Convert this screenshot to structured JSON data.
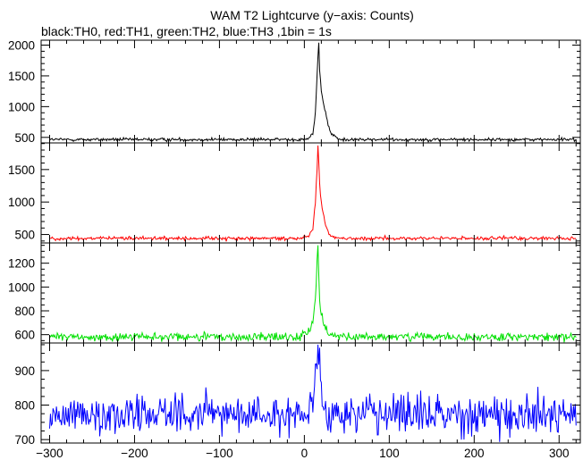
{
  "title": "WAM T2 Lightcurve (y−axis: Counts)",
  "subtitle": "black:TH0, red:TH1, green:TH2, blue:TH3 ,1bin = 1s",
  "chart_data": {
    "type": "line",
    "title": "WAM T2 Lightcurve (y−axis: Counts)",
    "subtitle": "black:TH0, red:TH1, green:TH2, blue:TH3 ,1bin = 1s",
    "xlabel": "",
    "ylabel": "",
    "bin_seconds": 1,
    "xlim": [
      -310,
      325
    ],
    "x_ticks": [
      -300,
      -200,
      -100,
      0,
      100,
      200,
      300
    ],
    "x_tick_labels": [
      "−300",
      "−200",
      "−100",
      "0",
      "100",
      "200",
      "300"
    ],
    "grid": false,
    "panels": [
      {
        "name": "TH0",
        "color": "#000000",
        "ylim": [
          410,
          2080
        ],
        "y_ticks": [
          500,
          1000,
          1500,
          2000
        ],
        "baseline": 465,
        "noise_sd": 13,
        "burst": [
          {
            "x": -5,
            "y": 470
          },
          {
            "x": 5,
            "y": 490
          },
          {
            "x": 10,
            "y": 560
          },
          {
            "x": 13,
            "y": 900
          },
          {
            "x": 15,
            "y": 1480
          },
          {
            "x": 16,
            "y": 1750
          },
          {
            "x": 17,
            "y": 2040
          },
          {
            "x": 18,
            "y": 1600
          },
          {
            "x": 19,
            "y": 1400
          },
          {
            "x": 20,
            "y": 1250
          },
          {
            "x": 22,
            "y": 1100
          },
          {
            "x": 25,
            "y": 900
          },
          {
            "x": 28,
            "y": 700
          },
          {
            "x": 32,
            "y": 550
          },
          {
            "x": 40,
            "y": 480
          }
        ]
      },
      {
        "name": "TH1",
        "color": "#ff0000",
        "ylim": [
          370,
          1910
        ],
        "y_ticks": [
          500,
          1000,
          1500
        ],
        "baseline": 440,
        "noise_sd": 14,
        "burst": [
          {
            "x": -5,
            "y": 450
          },
          {
            "x": 5,
            "y": 480
          },
          {
            "x": 10,
            "y": 580
          },
          {
            "x": 13,
            "y": 1000
          },
          {
            "x": 15,
            "y": 1500
          },
          {
            "x": 16,
            "y": 1870
          },
          {
            "x": 17,
            "y": 1600
          },
          {
            "x": 18,
            "y": 1300
          },
          {
            "x": 20,
            "y": 1000
          },
          {
            "x": 22,
            "y": 850
          },
          {
            "x": 25,
            "y": 650
          },
          {
            "x": 30,
            "y": 500
          },
          {
            "x": 38,
            "y": 450
          }
        ]
      },
      {
        "name": "TH2",
        "color": "#00e000",
        "ylim": [
          530,
          1370
        ],
        "y_ticks": [
          600,
          800,
          1000,
          1200
        ],
        "baseline": 580,
        "noise_sd": 18,
        "burst": [
          {
            "x": -5,
            "y": 600
          },
          {
            "x": 5,
            "y": 640
          },
          {
            "x": 10,
            "y": 700
          },
          {
            "x": 13,
            "y": 900
          },
          {
            "x": 15,
            "y": 1200
          },
          {
            "x": 16,
            "y": 1350
          },
          {
            "x": 17,
            "y": 1100
          },
          {
            "x": 18,
            "y": 900
          },
          {
            "x": 20,
            "y": 780
          },
          {
            "x": 23,
            "y": 680
          },
          {
            "x": 28,
            "y": 610
          },
          {
            "x": 35,
            "y": 585
          }
        ]
      },
      {
        "name": "TH3",
        "color": "#0000ff",
        "ylim": [
          690,
          980
        ],
        "y_ticks": [
          700,
          800,
          900
        ],
        "baseline": 775,
        "noise_sd": 28,
        "burst": [
          {
            "x": 5,
            "y": 790
          },
          {
            "x": 10,
            "y": 810
          },
          {
            "x": 13,
            "y": 880
          },
          {
            "x": 15,
            "y": 955
          },
          {
            "x": 16,
            "y": 975
          },
          {
            "x": 17,
            "y": 930
          },
          {
            "x": 19,
            "y": 860
          },
          {
            "x": 22,
            "y": 810
          },
          {
            "x": 28,
            "y": 785
          }
        ]
      }
    ]
  }
}
